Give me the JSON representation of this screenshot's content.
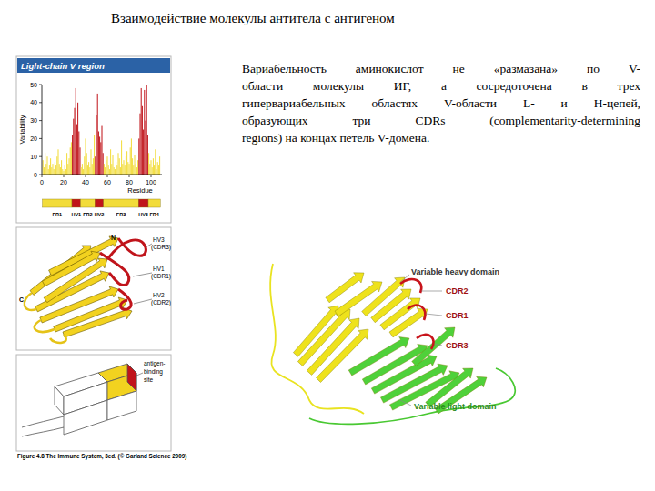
{
  "slide": {
    "title": "Взаимодействие молекулы антитела с антигеном",
    "text_lines": [
      "Вариабельность аминокислот не «размазана» по V-",
      "области молекулы ИГ, а сосредоточена в трех",
      "гипервариабельных областях V-области L- и H-цепей,",
      "образующих три CDRs (complementarity-determining",
      "regions) на концах петель V-домена."
    ]
  },
  "chart_data": {
    "type": "bar",
    "title": "Light-chain V region",
    "x_label": "Residue",
    "y_label": "Variability",
    "x": [
      1,
      2,
      3,
      4,
      5,
      6,
      7,
      8,
      9,
      10,
      11,
      12,
      13,
      14,
      15,
      16,
      17,
      18,
      19,
      20,
      21,
      22,
      23,
      24,
      25,
      26,
      27,
      28,
      29,
      30,
      31,
      32,
      33,
      34,
      35,
      36,
      37,
      38,
      39,
      40,
      41,
      42,
      43,
      44,
      45,
      46,
      47,
      48,
      49,
      50,
      51,
      52,
      53,
      54,
      55,
      56,
      57,
      58,
      59,
      60,
      61,
      62,
      63,
      64,
      65,
      66,
      67,
      68,
      69,
      70,
      71,
      72,
      73,
      74,
      75,
      76,
      77,
      78,
      79,
      80,
      81,
      82,
      83,
      84,
      85,
      86,
      87,
      88,
      89,
      90,
      91,
      92,
      93,
      94,
      95,
      96,
      97,
      98,
      99,
      100,
      101,
      102,
      103,
      104,
      105,
      106,
      107,
      108
    ],
    "values": [
      8,
      4,
      12,
      6,
      10,
      3,
      5,
      9,
      4,
      6,
      3,
      7,
      5,
      10,
      14,
      6,
      4,
      8,
      3,
      2,
      5,
      3,
      12,
      6,
      9,
      15,
      18,
      22,
      31,
      37,
      48,
      28,
      40,
      24,
      15,
      4,
      6,
      3,
      10,
      20,
      12,
      5,
      7,
      4,
      14,
      6,
      9,
      22,
      10,
      33,
      45,
      24,
      21,
      18,
      27,
      12,
      6,
      4,
      8,
      10,
      5,
      3,
      14,
      6,
      11,
      4,
      3,
      7,
      5,
      12,
      9,
      4,
      19,
      6,
      8,
      5,
      10,
      13,
      7,
      6,
      15,
      20,
      9,
      5,
      11,
      6,
      4,
      8,
      20,
      34,
      48,
      38,
      25,
      47,
      30,
      50,
      22,
      12,
      6,
      8,
      4,
      9,
      5,
      14,
      3,
      7,
      5,
      10
    ],
    "regions": [
      {
        "label": "FR1",
        "start": 1,
        "end": 27,
        "color": "#f2dc3a"
      },
      {
        "label": "HV1",
        "start": 28,
        "end": 35,
        "color": "#c0141b"
      },
      {
        "label": "FR2",
        "start": 36,
        "end": 48,
        "color": "#f2dc3a"
      },
      {
        "label": "HV2",
        "start": 49,
        "end": 56,
        "color": "#c0141b"
      },
      {
        "label": "FR3",
        "start": 57,
        "end": 88,
        "color": "#f2dc3a"
      },
      {
        "label": "HV3",
        "start": 89,
        "end": 97,
        "color": "#c0141b"
      },
      {
        "label": "FR4",
        "start": 98,
        "end": 108,
        "color": "#f2dc3a"
      }
    ],
    "xlim": [
      0,
      110
    ],
    "ylim": [
      0,
      50
    ],
    "xticks": [
      0,
      20,
      40,
      60,
      80,
      100
    ],
    "yticks": [
      0,
      10,
      20,
      30,
      40,
      50
    ],
    "grid": false
  },
  "ribbon": {
    "n": "N",
    "c": "C",
    "loops": [
      {
        "hv": "HV3",
        "cdr": "(CDR3)"
      },
      {
        "hv": "HV1",
        "cdr": "(CDR1)"
      },
      {
        "hv": "HV2",
        "cdr": "(CDR2)"
      }
    ]
  },
  "antigen_site": [
    "antigen-",
    "binding",
    "site"
  ],
  "caption": "Figure 4.8 The Immune System, 3ed. (© Garland Science 2009)",
  "structure": {
    "heavy": "Variable heavy domain",
    "light": "Variable light domain",
    "cdrs": [
      "CDR2",
      "CDR1",
      "CDR3"
    ]
  }
}
